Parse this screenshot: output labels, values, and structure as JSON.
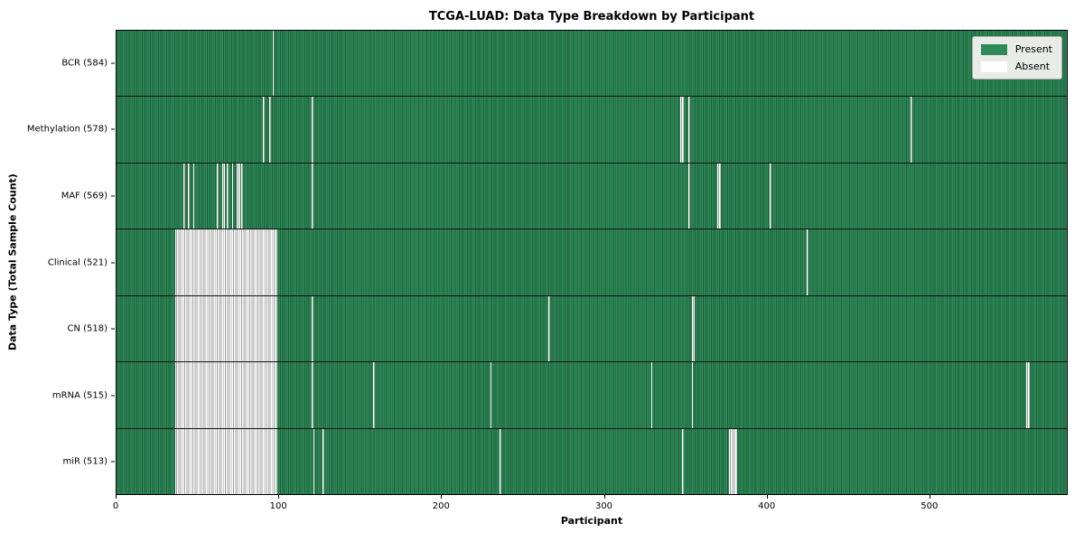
{
  "chart_data": {
    "type": "heatmap",
    "title": "TCGA-LUAD: Data Type Breakdown by Participant",
    "xlabel": "Participant",
    "ylabel": "Data Type (Total Sample Count)",
    "x_ticks": [
      0,
      100,
      200,
      300,
      400,
      500
    ],
    "x_max": 585,
    "grid": false,
    "legend_position": "upper right",
    "legend": [
      {
        "label": "Present",
        "color": "#2e8b57"
      },
      {
        "label": "Absent",
        "color": "#ffffff"
      }
    ],
    "colors": {
      "present_fill": "#2e8b57",
      "present_edge": "#1e5e3c",
      "absent_fill": "#ffffff",
      "absent_edge": "#9e9e9e",
      "row_divider": "#141414"
    },
    "rows": [
      {
        "data_type": "BCR",
        "label": "BCR (584)",
        "total_samples": 584,
        "absent_ranges": [
          [
            96,
            1
          ]
        ]
      },
      {
        "data_type": "Methylation",
        "label": "Methylation (578)",
        "total_samples": 578,
        "absent_ranges": [
          [
            90,
            1
          ],
          [
            94,
            1
          ],
          [
            120,
            1
          ],
          [
            347,
            2
          ],
          [
            352,
            1
          ],
          [
            489,
            1
          ]
        ]
      },
      {
        "data_type": "MAF",
        "label": "MAF (569)",
        "total_samples": 569,
        "absent_ranges": [
          [
            41,
            1
          ],
          [
            44,
            1
          ],
          [
            47,
            1
          ],
          [
            62,
            1
          ],
          [
            65,
            2
          ],
          [
            68,
            1
          ],
          [
            71,
            1
          ],
          [
            74,
            2
          ],
          [
            77,
            1
          ],
          [
            120,
            1
          ],
          [
            352,
            1
          ],
          [
            370,
            2
          ],
          [
            402,
            1
          ]
        ]
      },
      {
        "data_type": "Clinical",
        "label": "Clinical (521)",
        "total_samples": 521,
        "absent_ranges": [
          [
            36,
            63
          ],
          [
            425,
            1
          ]
        ]
      },
      {
        "data_type": "CN",
        "label": "CN (518)",
        "total_samples": 518,
        "absent_ranges": [
          [
            36,
            63
          ],
          [
            120,
            1
          ],
          [
            266,
            1
          ],
          [
            354,
            2
          ]
        ]
      },
      {
        "data_type": "mRNA",
        "label": "mRNA (515)",
        "total_samples": 515,
        "absent_ranges": [
          [
            36,
            63
          ],
          [
            120,
            1
          ],
          [
            158,
            1
          ],
          [
            230,
            1
          ],
          [
            329,
            1
          ],
          [
            354,
            1
          ],
          [
            560,
            2
          ]
        ]
      },
      {
        "data_type": "miR",
        "label": "miR (513)",
        "total_samples": 513,
        "absent_ranges": [
          [
            36,
            63
          ],
          [
            121,
            1
          ],
          [
            127,
            1
          ],
          [
            236,
            1
          ],
          [
            348,
            1
          ],
          [
            377,
            5
          ]
        ]
      }
    ]
  }
}
